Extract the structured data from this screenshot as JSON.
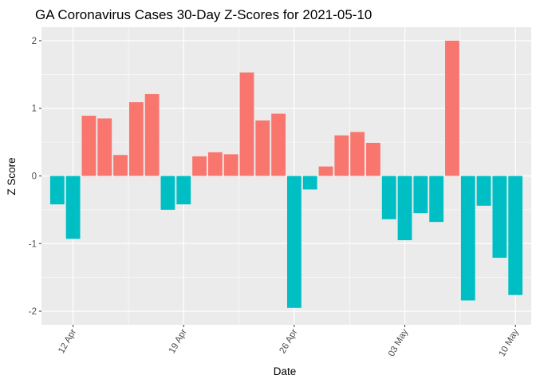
{
  "chart_data": {
    "type": "bar",
    "title": "GA Coronavirus Cases 30-Day Z-Scores for 2021-05-10",
    "xlabel": "Date",
    "ylabel": "Z Score",
    "ylim": [
      -2.2,
      2.2
    ],
    "yticks": [
      -2,
      -1,
      0,
      1,
      2
    ],
    "xticks": [
      {
        "date": "2021-04-12",
        "label": "12 Apr"
      },
      {
        "date": "2021-04-19",
        "label": "19 Apr"
      },
      {
        "date": "2021-04-26",
        "label": "26 Apr"
      },
      {
        "date": "2021-05-03",
        "label": "03 May"
      },
      {
        "date": "2021-05-10",
        "label": "10 May"
      }
    ],
    "xlim": [
      "2021-04-10",
      "2021-05-11"
    ],
    "grid": true,
    "legend": "none",
    "colors": {
      "positive": "#F8766D",
      "negative": "#00BFC4",
      "panel": "#EBEBEB",
      "grid": "#FFFFFF"
    },
    "x": [
      "2021-04-11",
      "2021-04-12",
      "2021-04-13",
      "2021-04-14",
      "2021-04-15",
      "2021-04-16",
      "2021-04-17",
      "2021-04-18",
      "2021-04-19",
      "2021-04-20",
      "2021-04-21",
      "2021-04-22",
      "2021-04-23",
      "2021-04-24",
      "2021-04-25",
      "2021-04-26",
      "2021-04-27",
      "2021-04-28",
      "2021-04-29",
      "2021-04-30",
      "2021-05-01",
      "2021-05-02",
      "2021-05-03",
      "2021-05-04",
      "2021-05-05",
      "2021-05-06",
      "2021-05-07",
      "2021-05-08",
      "2021-05-09",
      "2021-05-10"
    ],
    "values": [
      -0.42,
      -0.93,
      0.89,
      0.85,
      0.31,
      1.09,
      1.21,
      -0.5,
      -0.42,
      0.29,
      0.35,
      0.32,
      1.53,
      0.82,
      0.92,
      -1.95,
      -0.2,
      0.14,
      0.6,
      0.65,
      0.49,
      -0.64,
      -0.95,
      -0.55,
      -0.68,
      2.0,
      -1.84,
      -0.44,
      -1.21,
      -1.76
    ]
  }
}
